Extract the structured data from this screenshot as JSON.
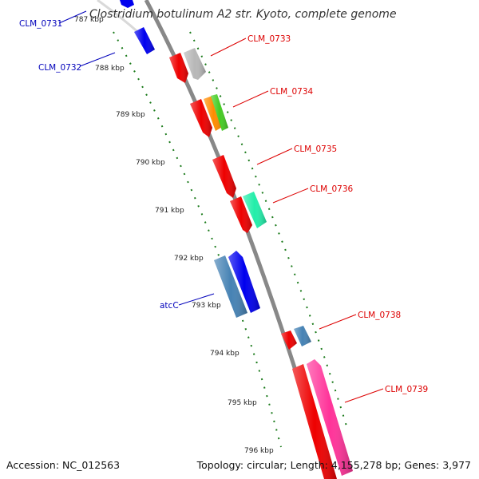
{
  "title": "Clostridium botulinum A2 str. Kyoto, complete genome",
  "footer": {
    "accession": "Accession: NC_012563",
    "summary": "Topology: circular; Length: 4,155,278 bp; Genes: 3,977"
  },
  "colors": {
    "backbone": "#888888",
    "tick": "#1a7a1a",
    "label_red": "#dd0000",
    "label_blue": "#0000bb"
  },
  "tick_labels": [
    "787 kbp",
    "788 kbp",
    "789 kbp",
    "790 kbp",
    "791 kbp",
    "792 kbp",
    "793 kbp",
    "794 kbp",
    "795 kbp",
    "796 kbp"
  ],
  "gene_labels": [
    {
      "text": "CLM_0731",
      "color": "blue"
    },
    {
      "text": "CLM_0732",
      "color": "blue"
    },
    {
      "text": "CLM_0733",
      "color": "red"
    },
    {
      "text": "CLM_0734",
      "color": "red"
    },
    {
      "text": "CLM_0735",
      "color": "red"
    },
    {
      "text": "CLM_0736",
      "color": "red"
    },
    {
      "text": "atcC",
      "color": "blue"
    },
    {
      "text": "CLM_0738",
      "color": "red"
    },
    {
      "text": "CLM_0739",
      "color": "red"
    }
  ],
  "features": [
    {
      "name": "feature-blue-top",
      "color": "#0000ee"
    },
    {
      "name": "feature-clm-0732",
      "color": "#0000ee"
    },
    {
      "name": "feature-red-a",
      "color": "#ee0000"
    },
    {
      "name": "feature-grey",
      "color": "#b8b8b8"
    },
    {
      "name": "feature-red-b",
      "color": "#ee0000"
    },
    {
      "name": "feature-orange",
      "color": "#ff8c00"
    },
    {
      "name": "feature-green",
      "color": "#44cc22"
    },
    {
      "name": "feature-red-c",
      "color": "#ee0000"
    },
    {
      "name": "feature-red-d",
      "color": "#ee0000"
    },
    {
      "name": "feature-teal",
      "color": "#22eeaa"
    },
    {
      "name": "feature-steelblue-a",
      "color": "#4682b4"
    },
    {
      "name": "feature-blue-b",
      "color": "#0000ee"
    },
    {
      "name": "feature-red-e",
      "color": "#ee0000"
    },
    {
      "name": "feature-steelblue-b",
      "color": "#4682b4"
    },
    {
      "name": "feature-red-f",
      "color": "#ee0000"
    },
    {
      "name": "feature-pink",
      "color": "#ff3399"
    }
  ]
}
